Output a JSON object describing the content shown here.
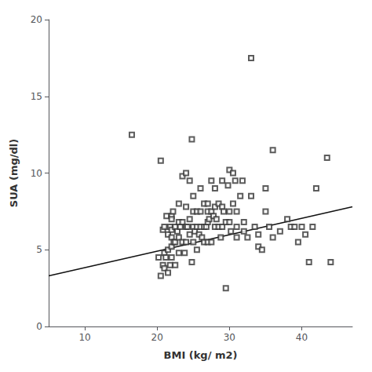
{
  "chart_data": {
    "type": "scatter",
    "xlabel": "BMI (kg/ m2)",
    "ylabel": "SUA (mg/dl)",
    "xlim": [
      5,
      47
    ],
    "ylim": [
      0,
      20
    ],
    "xticks": [
      10,
      20,
      30,
      40
    ],
    "yticks": [
      0,
      5,
      10,
      15,
      20
    ],
    "grid": false,
    "series": [
      {
        "type": "scatter",
        "color": "#333333",
        "marker": "square",
        "x": [
          16.5,
          20.2,
          20.5,
          20.5,
          20.8,
          20.8,
          21.0,
          21.0,
          21.0,
          21.2,
          21.3,
          21.5,
          21.5,
          21.5,
          21.8,
          21.8,
          22.0,
          22.0,
          22.0,
          22.0,
          22.0,
          22.0,
          22.2,
          22.3,
          22.5,
          22.5,
          22.5,
          22.8,
          23.0,
          23.0,
          23.0,
          23.0,
          23.2,
          23.5,
          23.5,
          23.5,
          23.8,
          24.0,
          24.0,
          24.0,
          24.0,
          24.2,
          24.5,
          24.5,
          24.5,
          24.8,
          24.8,
          25.0,
          25.0,
          25.0,
          25.0,
          25.2,
          25.5,
          25.5,
          25.5,
          25.8,
          26.0,
          26.0,
          26.0,
          26.2,
          26.5,
          26.5,
          26.5,
          26.8,
          27.0,
          27.0,
          27.0,
          27.0,
          27.2,
          27.5,
          27.5,
          27.5,
          27.8,
          28.0,
          28.0,
          28.0,
          28.2,
          28.5,
          28.5,
          28.8,
          29.0,
          29.0,
          29.0,
          29.2,
          29.5,
          29.5,
          29.8,
          30.0,
          30.0,
          30.0,
          30.2,
          30.5,
          30.5,
          30.8,
          31.0,
          31.0,
          31.0,
          31.5,
          31.8,
          32.0,
          32.0,
          32.5,
          33.0,
          33.0,
          33.5,
          34.0,
          34.0,
          34.5,
          35.0,
          35.0,
          35.5,
          36.0,
          36.0,
          37.0,
          38.0,
          38.5,
          39.0,
          39.5,
          40.0,
          40.5,
          41.0,
          41.5,
          42.0,
          43.5,
          44.0
        ],
        "values": [
          12.5,
          4.5,
          10.8,
          3.3,
          6.3,
          4.0,
          4.8,
          3.8,
          6.5,
          4.5,
          7.2,
          6.0,
          3.5,
          5.0,
          6.5,
          4.0,
          7.2,
          7.0,
          6.3,
          5.8,
          5.2,
          4.5,
          7.5,
          5.5,
          6.5,
          5.5,
          4.0,
          6.2,
          8.0,
          6.8,
          5.8,
          4.8,
          6.5,
          9.8,
          6.8,
          5.5,
          4.8,
          10.0,
          7.8,
          6.5,
          5.5,
          6.5,
          9.5,
          7.0,
          6.0,
          12.2,
          4.2,
          8.5,
          7.5,
          6.5,
          5.5,
          6.2,
          7.5,
          6.5,
          5.0,
          6.0,
          9.0,
          7.5,
          6.5,
          5.8,
          8.0,
          6.5,
          5.5,
          6.5,
          8.0,
          7.5,
          6.8,
          5.5,
          7.0,
          9.5,
          7.5,
          5.5,
          7.2,
          9.0,
          7.8,
          6.5,
          7.0,
          8.0,
          6.5,
          5.8,
          9.5,
          7.8,
          6.5,
          7.5,
          2.5,
          6.8,
          9.2,
          10.2,
          7.5,
          6.8,
          6.2,
          10.0,
          8.0,
          9.5,
          7.5,
          6.5,
          5.8,
          8.5,
          9.5,
          6.8,
          6.2,
          5.8,
          17.5,
          8.5,
          6.5,
          6.0,
          5.2,
          5.0,
          9.0,
          7.5,
          6.5,
          5.8,
          11.5,
          6.2,
          7.0,
          6.5,
          6.5,
          5.5,
          6.5,
          6.0,
          4.2,
          6.5,
          9.0,
          11.0,
          4.2
        ]
      },
      {
        "type": "line",
        "color": "#111111",
        "x": [
          5,
          47
        ],
        "values": [
          3.3,
          7.8
        ]
      }
    ]
  }
}
